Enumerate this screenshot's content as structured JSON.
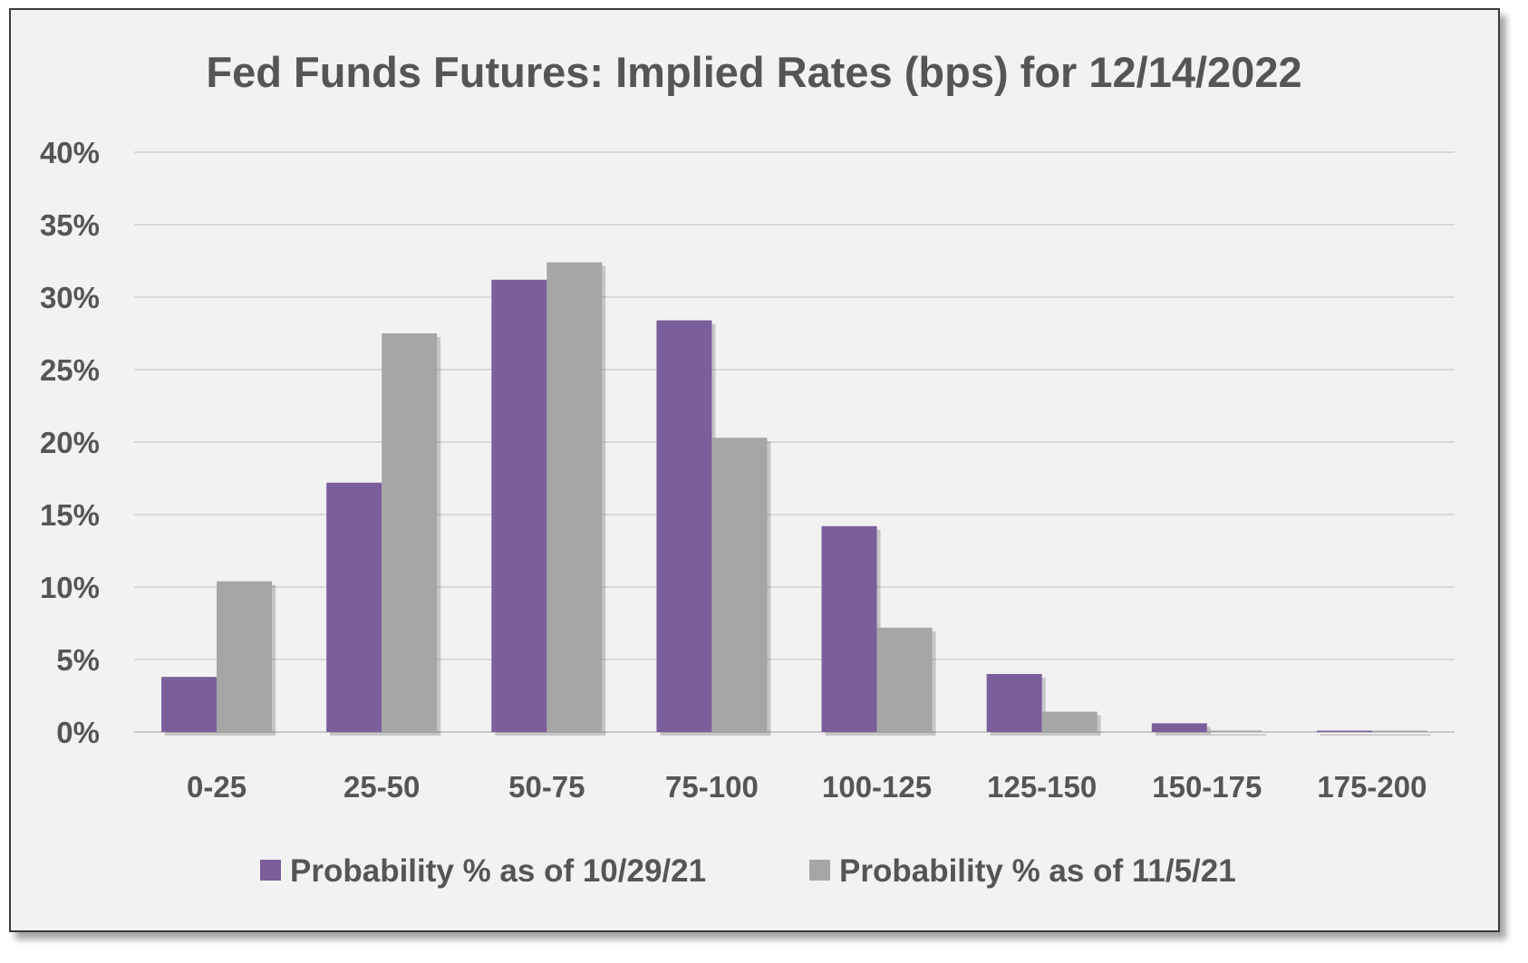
{
  "chart_data": {
    "type": "bar",
    "title": "Fed Funds Futures: Implied Rates (bps) for 12/14/2022",
    "xlabel": "",
    "ylabel": "",
    "categories": [
      "0-25",
      "25-50",
      "50-75",
      "75-100",
      "100-125",
      "125-150",
      "150-175",
      "175-200"
    ],
    "series": [
      {
        "name": "Probability % as of 10/29/21",
        "color": "#7b5e9c",
        "values": [
          3.8,
          17.2,
          31.2,
          28.4,
          14.2,
          4.0,
          0.6,
          0.0
        ]
      },
      {
        "name": "Probability % as of 11/5/21",
        "color": "#a6a6a6",
        "values": [
          10.4,
          27.5,
          32.4,
          20.3,
          7.2,
          1.4,
          0.1,
          0.05
        ]
      }
    ],
    "ylim": [
      0,
      40
    ],
    "yticks": [
      "0%",
      "5%",
      "10%",
      "15%",
      "20%",
      "25%",
      "30%",
      "35%",
      "40%"
    ],
    "grid": true,
    "legend_position": "bottom"
  }
}
